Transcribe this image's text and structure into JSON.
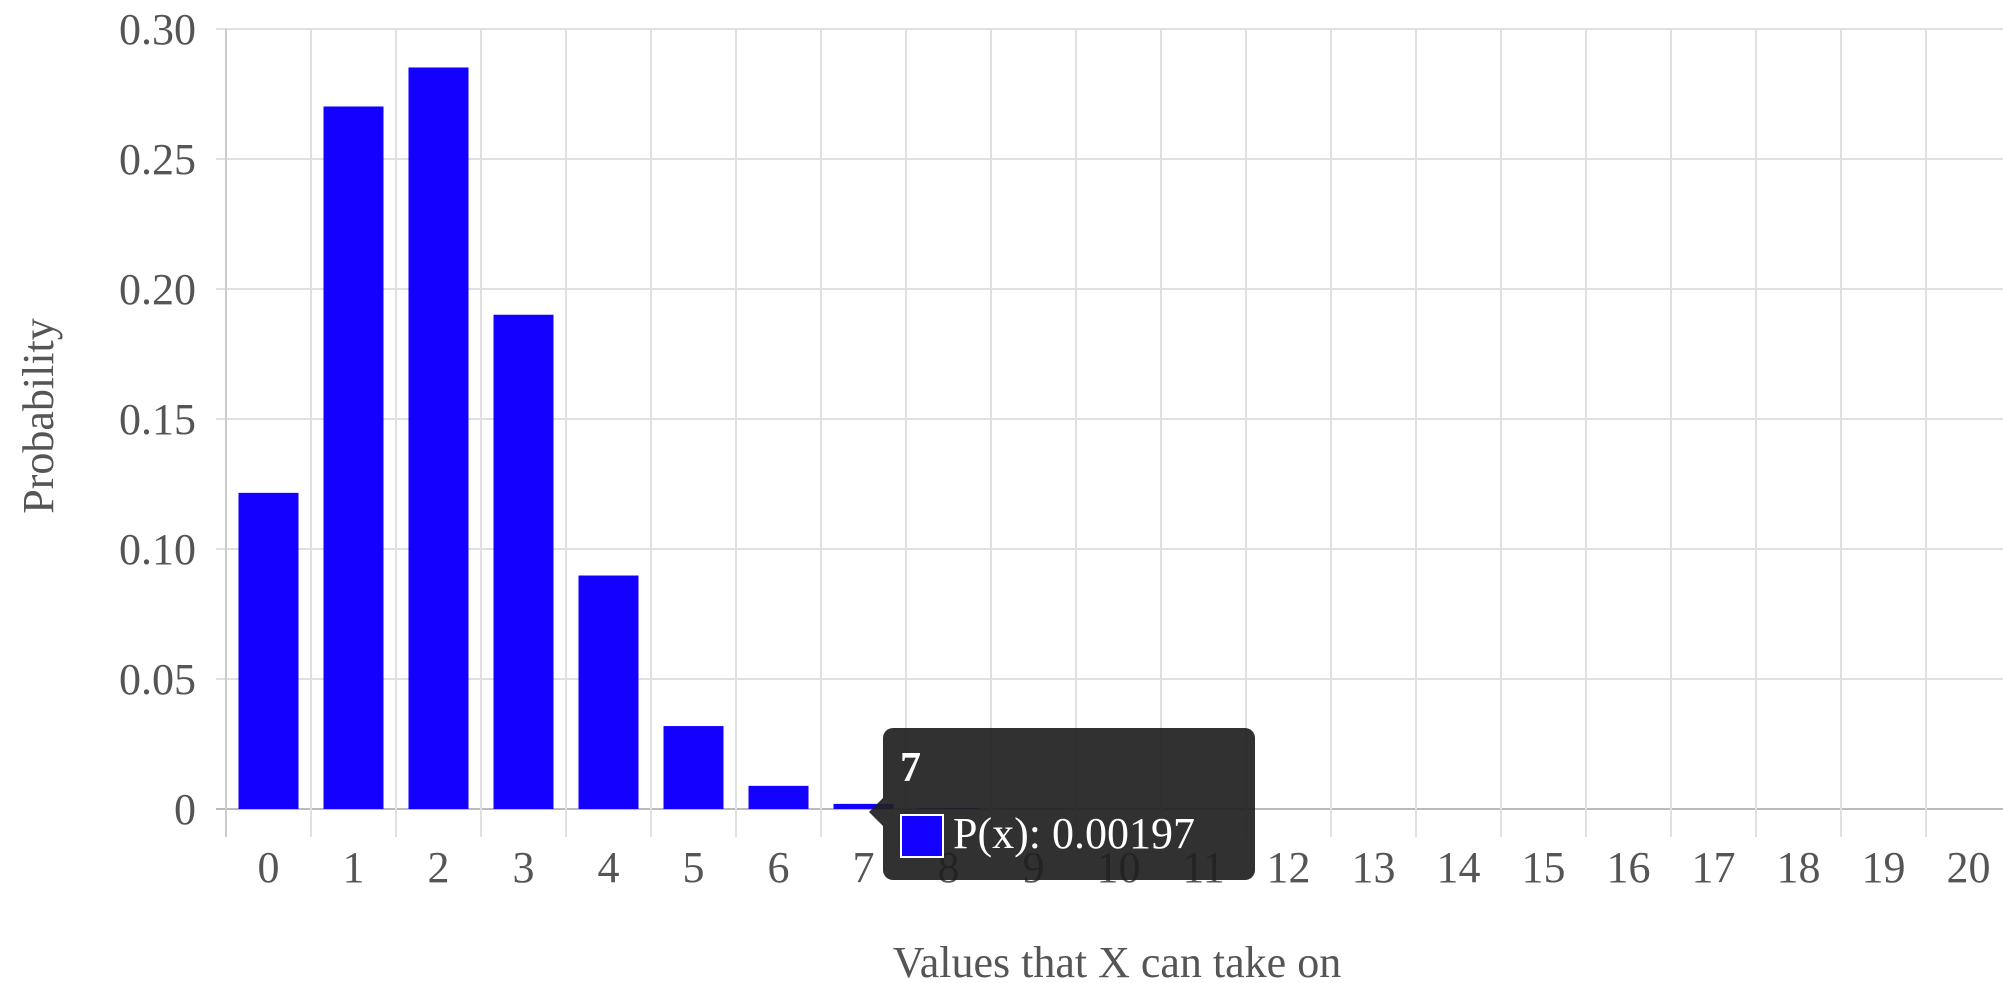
{
  "chart_data": {
    "type": "bar",
    "categories": [
      "0",
      "1",
      "2",
      "3",
      "4",
      "5",
      "6",
      "7",
      "8",
      "9",
      "10",
      "11",
      "12",
      "13",
      "14",
      "15",
      "16",
      "17",
      "18",
      "19",
      "20"
    ],
    "series": [
      {
        "name": "P(x)",
        "color": "#1400ff",
        "values": [
          0.1216,
          0.2702,
          0.2852,
          0.1901,
          0.0898,
          0.0319,
          0.0089,
          0.00197,
          0.0004,
          0.0001,
          0,
          0,
          0,
          0,
          0,
          0,
          0,
          0,
          0,
          0,
          0
        ]
      }
    ],
    "xlabel": "Values that X can take on",
    "ylabel": "Probability",
    "ylim": [
      0,
      0.3
    ],
    "yticks": [
      "0",
      "0.05",
      "0.10",
      "0.15",
      "0.20",
      "0.25",
      "0.30"
    ],
    "grid": true,
    "legend": "none"
  },
  "tooltip": {
    "title": "7",
    "label": "P(x): 0.00197",
    "swatch_color": "#1400ff"
  }
}
